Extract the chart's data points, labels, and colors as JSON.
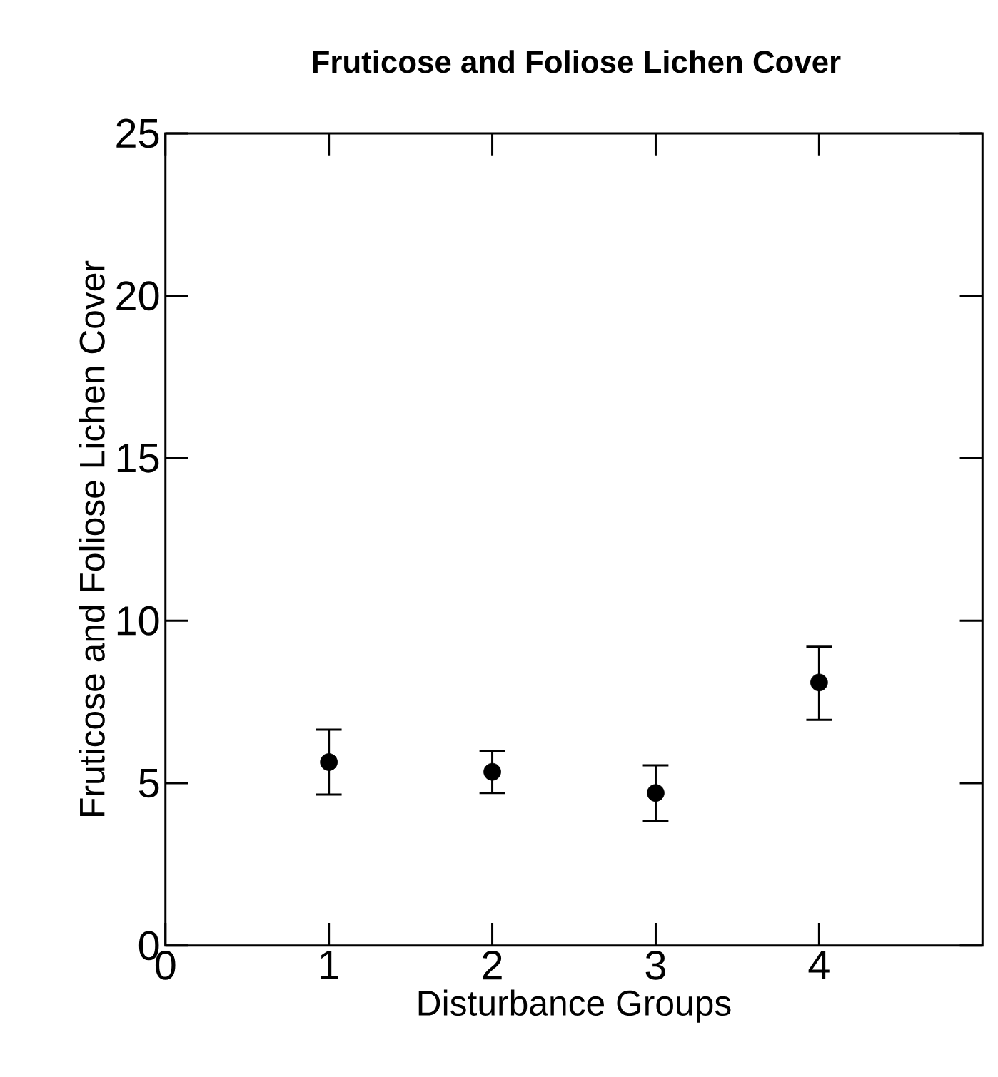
{
  "chart_data": {
    "type": "scatter",
    "title": "Fruticose and Foliose Lichen Cover",
    "xlabel": "Disturbance Groups",
    "ylabel": "Fruticose and Foliose Lichen Cover",
    "x": [
      1,
      2,
      3,
      4
    ],
    "values": [
      5.65,
      5.35,
      4.7,
      8.1
    ],
    "errors": [
      [
        4.65,
        6.65
      ],
      [
        4.7,
        6.0
      ],
      [
        3.85,
        5.55
      ],
      [
        6.95,
        9.2
      ]
    ],
    "color": "#000000",
    "xlim": [
      0,
      5
    ],
    "ylim": [
      0,
      25
    ],
    "xticks": [
      0,
      1,
      2,
      3,
      4
    ],
    "yticks": [
      0,
      5,
      10,
      15,
      20,
      25
    ],
    "grid": false
  }
}
